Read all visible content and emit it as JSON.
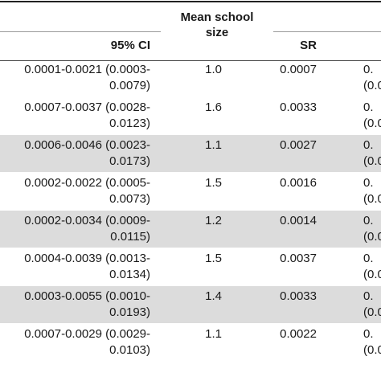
{
  "table": {
    "header": {
      "ci": "95% CI",
      "mean_school_size_line1": "Mean school",
      "mean_school_size_line2": "size",
      "sr": "SR"
    },
    "rows": [
      {
        "ci_line1": "0.0001-0.0021 (0.0003-",
        "ci_line2": "0.0079)",
        "mean_school_size": "1.0",
        "sr": "0.0007",
        "cut_line1": "0.",
        "cut_line2": "(0.0"
      },
      {
        "ci_line1": "0.0007-0.0037 (0.0028-",
        "ci_line2": "0.0123)",
        "mean_school_size": "1.6",
        "sr": "0.0033",
        "cut_line1": "0.",
        "cut_line2": "(0.0"
      },
      {
        "ci_line1": "0.0006-0.0046 (0.0023-",
        "ci_line2": "0.0173)",
        "mean_school_size": "1.1",
        "sr": "0.0027",
        "cut_line1": "0.",
        "cut_line2": "(0.0"
      },
      {
        "ci_line1": "0.0002-0.0022 (0.0005-",
        "ci_line2": "0.0073)",
        "mean_school_size": "1.5",
        "sr": "0.0016",
        "cut_line1": "0.",
        "cut_line2": "(0.0"
      },
      {
        "ci_line1": "0.0002-0.0034 (0.0009-",
        "ci_line2": "0.0115)",
        "mean_school_size": "1.2",
        "sr": "0.0014",
        "cut_line1": "0.",
        "cut_line2": "(0.0"
      },
      {
        "ci_line1": "0.0004-0.0039 (0.0013-",
        "ci_line2": "0.0134)",
        "mean_school_size": "1.5",
        "sr": "0.0037",
        "cut_line1": "0.",
        "cut_line2": "(0.0"
      },
      {
        "ci_line1": "0.0003-0.0055 (0.0010-",
        "ci_line2": "0.0193)",
        "mean_school_size": "1.4",
        "sr": "0.0033",
        "cut_line1": "0.",
        "cut_line2": "(0.0"
      },
      {
        "ci_line1": "0.0007-0.0029 (0.0029-",
        "ci_line2": "0.0103)",
        "mean_school_size": "1.1",
        "sr": "0.0022",
        "cut_line1": "0.",
        "cut_line2": "(0.0"
      }
    ]
  }
}
